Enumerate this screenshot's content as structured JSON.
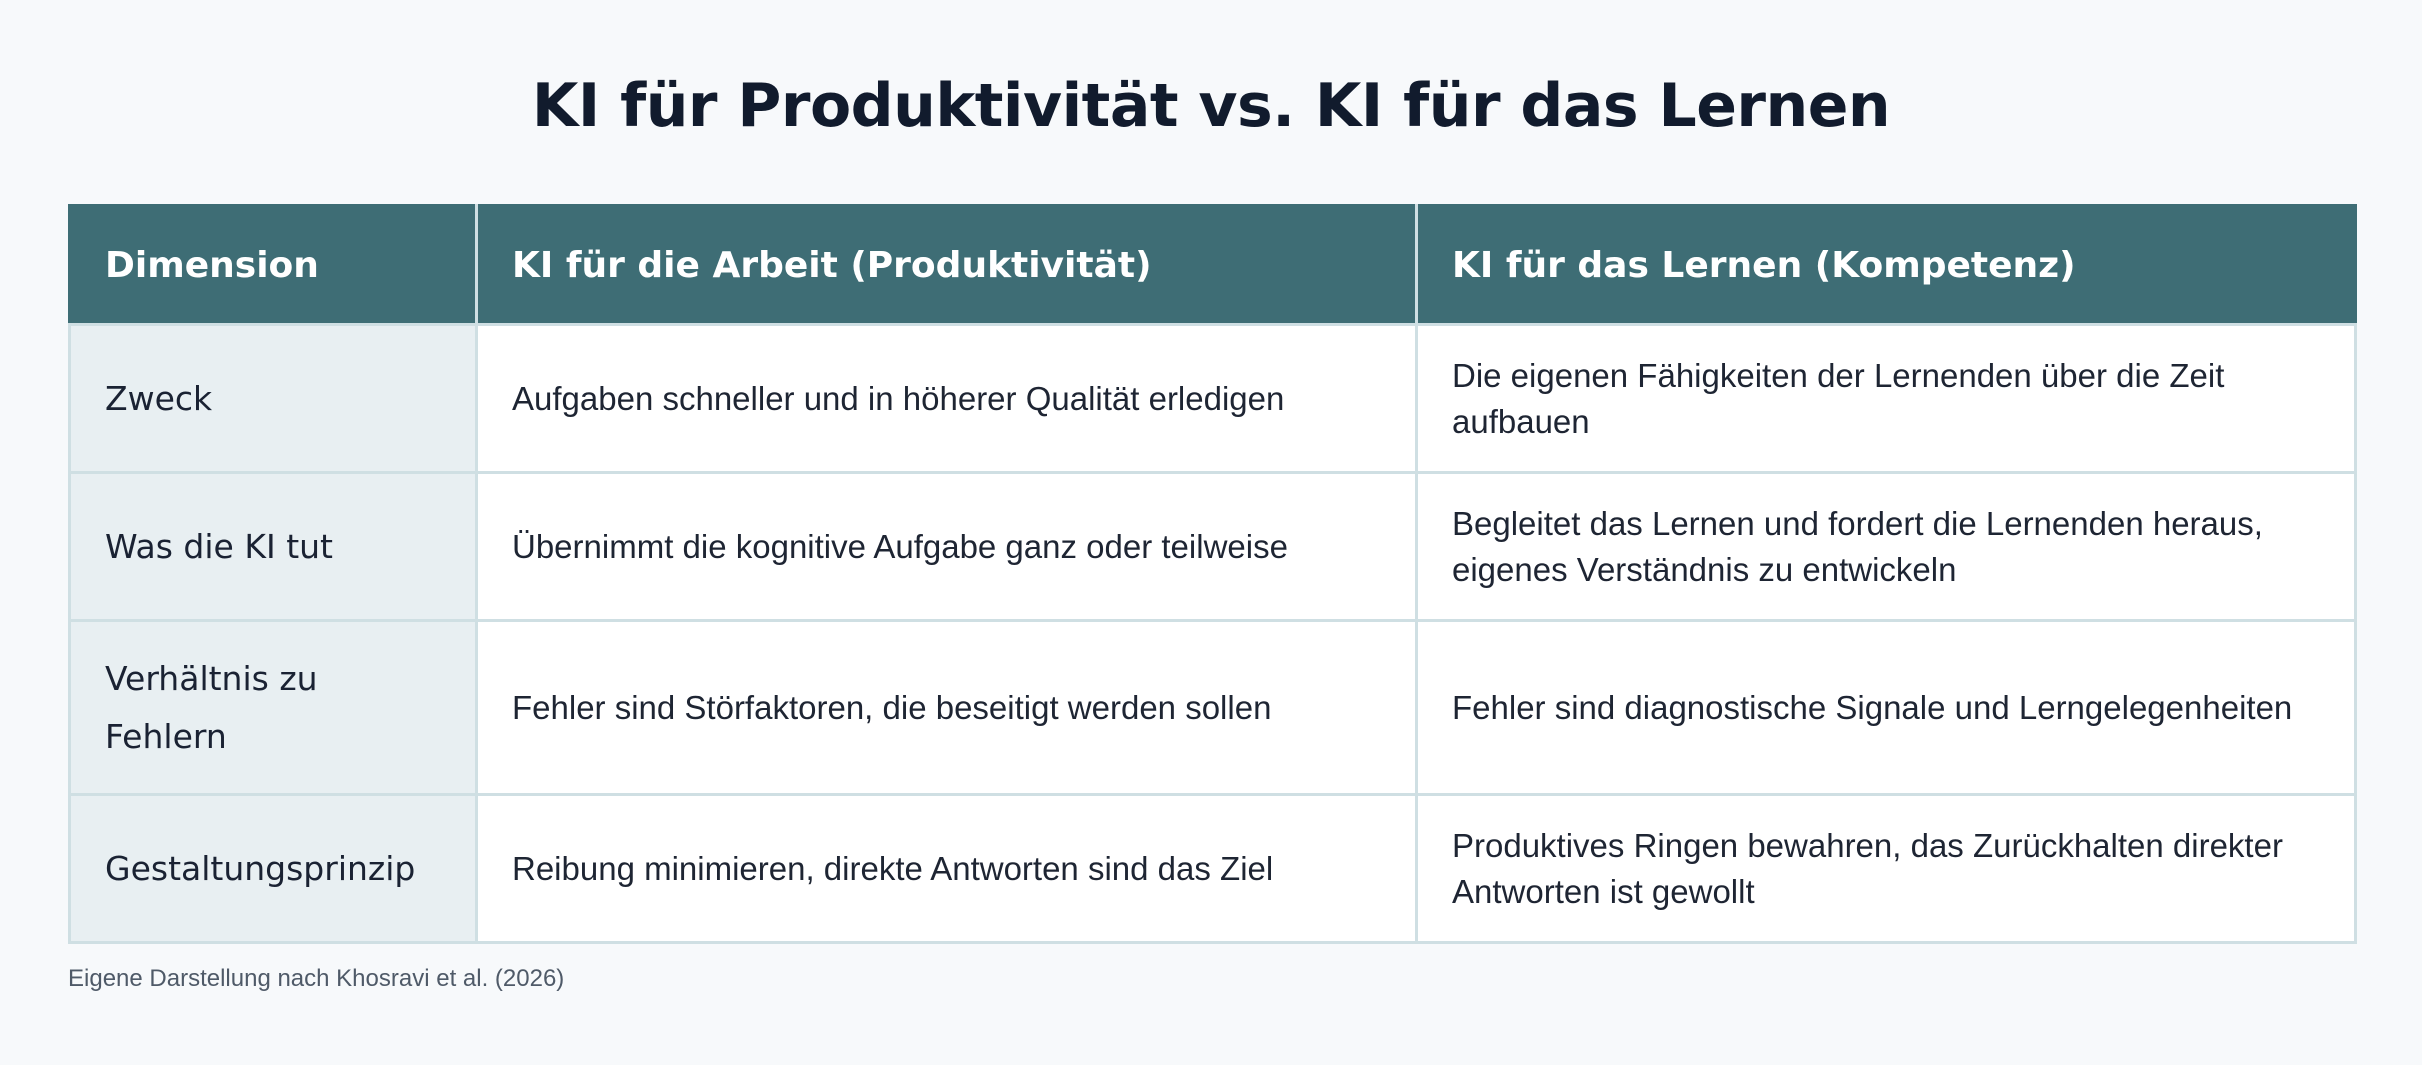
{
  "title": "KI für Produktivität vs. KI für das Lernen",
  "table": {
    "headers": [
      "Dimension",
      "KI für die Arbeit (Produktivität)",
      "KI für das Lernen (Kompetenz)"
    ],
    "rows": [
      {
        "dimension": "Zweck",
        "work": "Aufgaben schneller und in höherer Qualität erledigen",
        "learning": "Die eigenen Fähigkeiten der Lernenden über die Zeit aufbauen"
      },
      {
        "dimension": "Was die KI tut",
        "work": "Übernimmt die kognitive Aufgabe ganz oder teilweise",
        "learning": "Begleitet das Lernen und fordert die Lernenden heraus, eigenes Verständnis zu entwickeln"
      },
      {
        "dimension": "Verhältnis zu Fehlern",
        "work": "Fehler sind Störfaktoren, die beseitigt werden sollen",
        "learning": "Fehler sind diagnostische Signale und Lerngelegenheiten"
      },
      {
        "dimension": "Gestaltungsprinzip",
        "work": "Reibung minimieren, direkte Antworten sind das Ziel",
        "learning": "Produktives Ringen bewahren, das Zurückhalten direkter Antworten ist gewollt"
      }
    ]
  },
  "source": "Eigene Darstellung nach Khosravi et al. (2026)",
  "colors": {
    "header_bg": "#3e6d75",
    "dimension_bg": "#e8eff2",
    "border": "#cfdfe3",
    "title": "#111b2d",
    "page_bg": "#f7f9fb"
  }
}
